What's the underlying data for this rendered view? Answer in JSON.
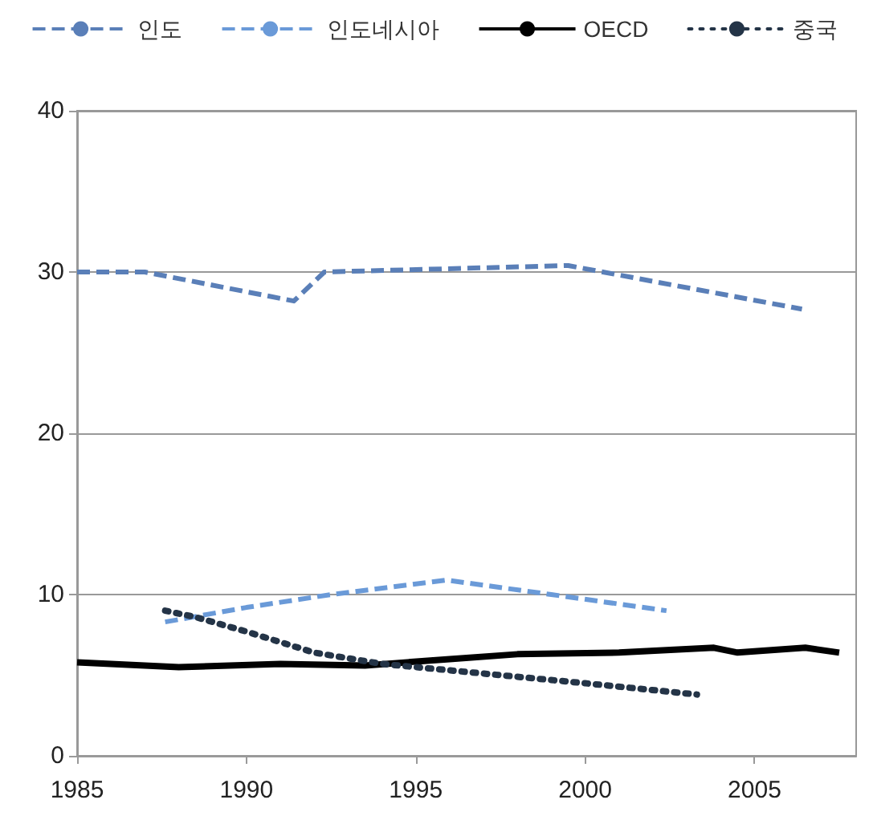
{
  "chart_data": {
    "type": "line",
    "xlim": [
      1985,
      2008
    ],
    "xticks": [
      1985,
      1990,
      1995,
      2000,
      2005
    ],
    "ylim": [
      0,
      40
    ],
    "yticks": [
      0,
      10,
      20,
      30,
      40
    ],
    "grid": "y",
    "legend": "top",
    "marker": "none",
    "series": [
      {
        "name": "인도",
        "color": "#5a7fb8",
        "line_style": "dashed",
        "x": [
          1985,
          1987,
          1991.4,
          1992.3,
          1999.5,
          2006.4
        ],
        "values": [
          30,
          30,
          28.2,
          30,
          30.4,
          27.7
        ]
      },
      {
        "name": "인도네시아",
        "color": "#6a9ad8",
        "line_style": "dashed",
        "x": [
          1987.6,
          1990,
          1992.5,
          1995.9,
          1999,
          2002.4
        ],
        "values": [
          8.3,
          9.2,
          10,
          10.9,
          10,
          9
        ]
      },
      {
        "name": "OECD",
        "color": "#000000",
        "line_style": "solid",
        "x": [
          1985,
          1988,
          1991,
          1993.5,
          1996,
          1998,
          2001,
          2003.8,
          2004.5,
          2006.5,
          2007.5
        ],
        "values": [
          5.8,
          5.5,
          5.7,
          5.6,
          6,
          6.3,
          6.4,
          6.7,
          6.4,
          6.7,
          6.4
        ]
      },
      {
        "name": "중국",
        "color": "#243447",
        "line_style": "dotted",
        "x": [
          1987.6,
          1988.5,
          1990,
          1992,
          1994,
          1996,
          1998,
          2000,
          2003.3
        ],
        "values": [
          9,
          8.6,
          7.7,
          6.4,
          5.7,
          5.3,
          4.9,
          4.5,
          3.8
        ]
      }
    ]
  }
}
